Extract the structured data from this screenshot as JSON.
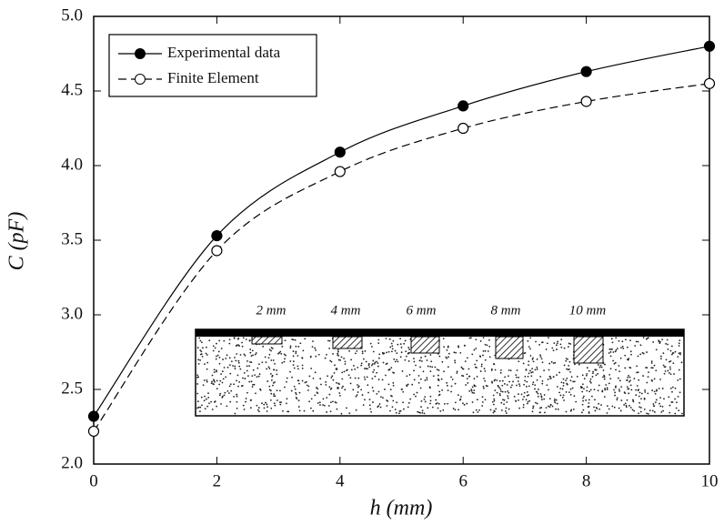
{
  "chart_data": {
    "type": "line",
    "x_label": "h (mm)",
    "y_label": "C (pF)",
    "x": [
      0,
      2,
      4,
      6,
      8,
      10
    ],
    "series": [
      {
        "name": "Experimental data",
        "color": "#000000",
        "values": [
          2.32,
          3.53,
          4.09,
          4.4,
          4.63,
          4.8
        ]
      },
      {
        "name": "Finite Element",
        "color": "#000000",
        "values": [
          2.22,
          3.43,
          3.96,
          4.25,
          4.43,
          4.55
        ]
      }
    ],
    "xlim": [
      0,
      10
    ],
    "xticks": [
      0,
      2,
      4,
      6,
      8,
      10
    ],
    "ylim": [
      2.0,
      5.0
    ],
    "yticks": [
      {
        "value": 2,
        "label": "2.0"
      },
      2.5,
      {
        "value": 3,
        "label": "3.0"
      },
      3.5,
      {
        "value": 4,
        "label": "4.0"
      },
      4.5,
      {
        "value": 5,
        "label": "5.0"
      }
    ],
    "legend": "upper left",
    "annotations": [
      "2 mm",
      "4 mm",
      "6 mm",
      "8 mm",
      "10 mm"
    ]
  }
}
